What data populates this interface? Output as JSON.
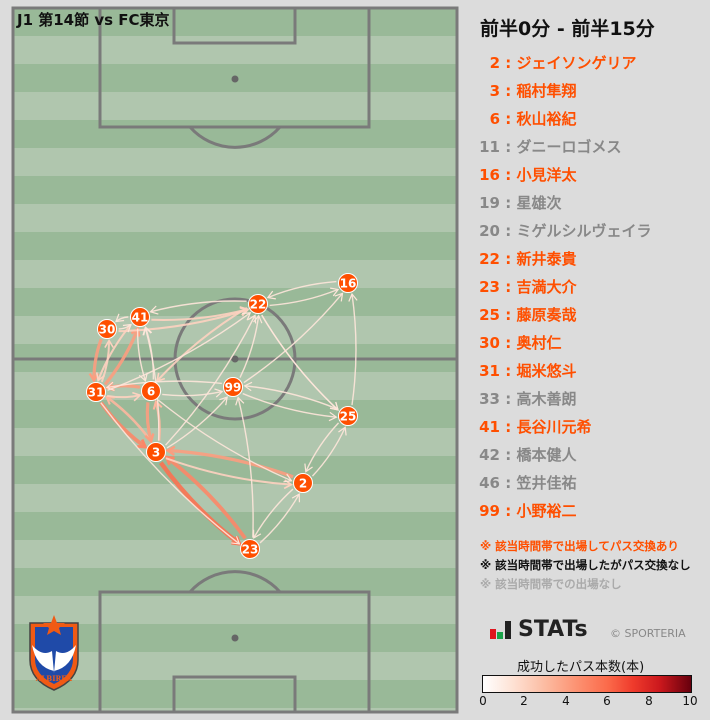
{
  "header": {
    "match_title": "J1 第14節 vs FC東京",
    "period": "前半0分 - 前半15分"
  },
  "colors": {
    "active": "#ff4f00",
    "inactive": "#888888",
    "pitch_dark": "#99b998",
    "pitch_light": "#b0c6ae",
    "node": "#ff4f00"
  },
  "players": [
    {
      "num": "2",
      "name": "ジェイソンゲリア",
      "status": "active"
    },
    {
      "num": "3",
      "name": "稲村隼翔",
      "status": "active"
    },
    {
      "num": "6",
      "name": "秋山裕紀",
      "status": "active"
    },
    {
      "num": "11",
      "name": "ダニーロゴメス",
      "status": "inactive"
    },
    {
      "num": "16",
      "name": "小見洋太",
      "status": "active"
    },
    {
      "num": "19",
      "name": "星雄次",
      "status": "inactive"
    },
    {
      "num": "20",
      "name": "ミゲルシルヴェイラ",
      "status": "inactive"
    },
    {
      "num": "22",
      "name": "新井泰貴",
      "status": "active"
    },
    {
      "num": "23",
      "name": "吉満大介",
      "status": "active"
    },
    {
      "num": "25",
      "name": "藤原奏哉",
      "status": "active"
    },
    {
      "num": "30",
      "name": "奥村仁",
      "status": "active"
    },
    {
      "num": "31",
      "name": "堀米悠斗",
      "status": "active"
    },
    {
      "num": "33",
      "name": "高木善朗",
      "status": "inactive"
    },
    {
      "num": "41",
      "name": "長谷川元希",
      "status": "active"
    },
    {
      "num": "42",
      "name": "橋本健人",
      "status": "inactive"
    },
    {
      "num": "46",
      "name": "笠井佳祐",
      "status": "inactive"
    },
    {
      "num": "99",
      "name": "小野裕二",
      "status": "active"
    }
  ],
  "notes": [
    {
      "text": "※ 該当時間帯で出場してパス交換あり",
      "color": "#ff4f00"
    },
    {
      "text": "※ 該当時間帯で出場したがパス交換なし",
      "color": "#111111"
    },
    {
      "text": "※ 該当時間帯での出場なし",
      "color": "#aaaaaa"
    }
  ],
  "branding": {
    "stats_logo": "STATs",
    "copyright": "© SPORTERIA",
    "club_crest": "ALBIREX"
  },
  "colorbar": {
    "title": "成功したパス本数(本)",
    "ticks": [
      "0",
      "2",
      "4",
      "6",
      "8",
      "10"
    ],
    "min": 0,
    "max": 10
  },
  "passes": [
    [
      "30",
      "31",
      4
    ],
    [
      "31",
      "30",
      2
    ],
    [
      "31",
      "41",
      4
    ],
    [
      "41",
      "31",
      2
    ],
    [
      "31",
      "3",
      5
    ],
    [
      "3",
      "31",
      3
    ],
    [
      "6",
      "31",
      4
    ],
    [
      "31",
      "6",
      2
    ],
    [
      "6",
      "3",
      4
    ],
    [
      "3",
      "6",
      3
    ],
    [
      "3",
      "23",
      6
    ],
    [
      "23",
      "3",
      5
    ],
    [
      "2",
      "3",
      4
    ],
    [
      "3",
      "2",
      2
    ],
    [
      "2",
      "23",
      1
    ],
    [
      "23",
      "2",
      1
    ],
    [
      "25",
      "2",
      1
    ],
    [
      "2",
      "25",
      1
    ],
    [
      "16",
      "22",
      1
    ],
    [
      "22",
      "16",
      1
    ],
    [
      "25",
      "16",
      1
    ],
    [
      "99",
      "16",
      1
    ],
    [
      "22",
      "25",
      1
    ],
    [
      "25",
      "99",
      1
    ],
    [
      "99",
      "25",
      1
    ],
    [
      "23",
      "99",
      1
    ],
    [
      "3",
      "99",
      1
    ],
    [
      "99",
      "22",
      1
    ],
    [
      "3",
      "22",
      1
    ],
    [
      "22",
      "6",
      2
    ],
    [
      "30",
      "22",
      2
    ],
    [
      "22",
      "41",
      1
    ],
    [
      "41",
      "22",
      2
    ],
    [
      "31",
      "22",
      1
    ],
    [
      "6",
      "99",
      1
    ],
    [
      "99",
      "31",
      1
    ],
    [
      "41",
      "6",
      1
    ],
    [
      "6",
      "41",
      1
    ],
    [
      "30",
      "41",
      1
    ],
    [
      "41",
      "30",
      1
    ],
    [
      "31",
      "23",
      1
    ],
    [
      "6",
      "2",
      1
    ],
    [
      "22",
      "25",
      1
    ],
    [
      "3",
      "41",
      1
    ]
  ]
}
